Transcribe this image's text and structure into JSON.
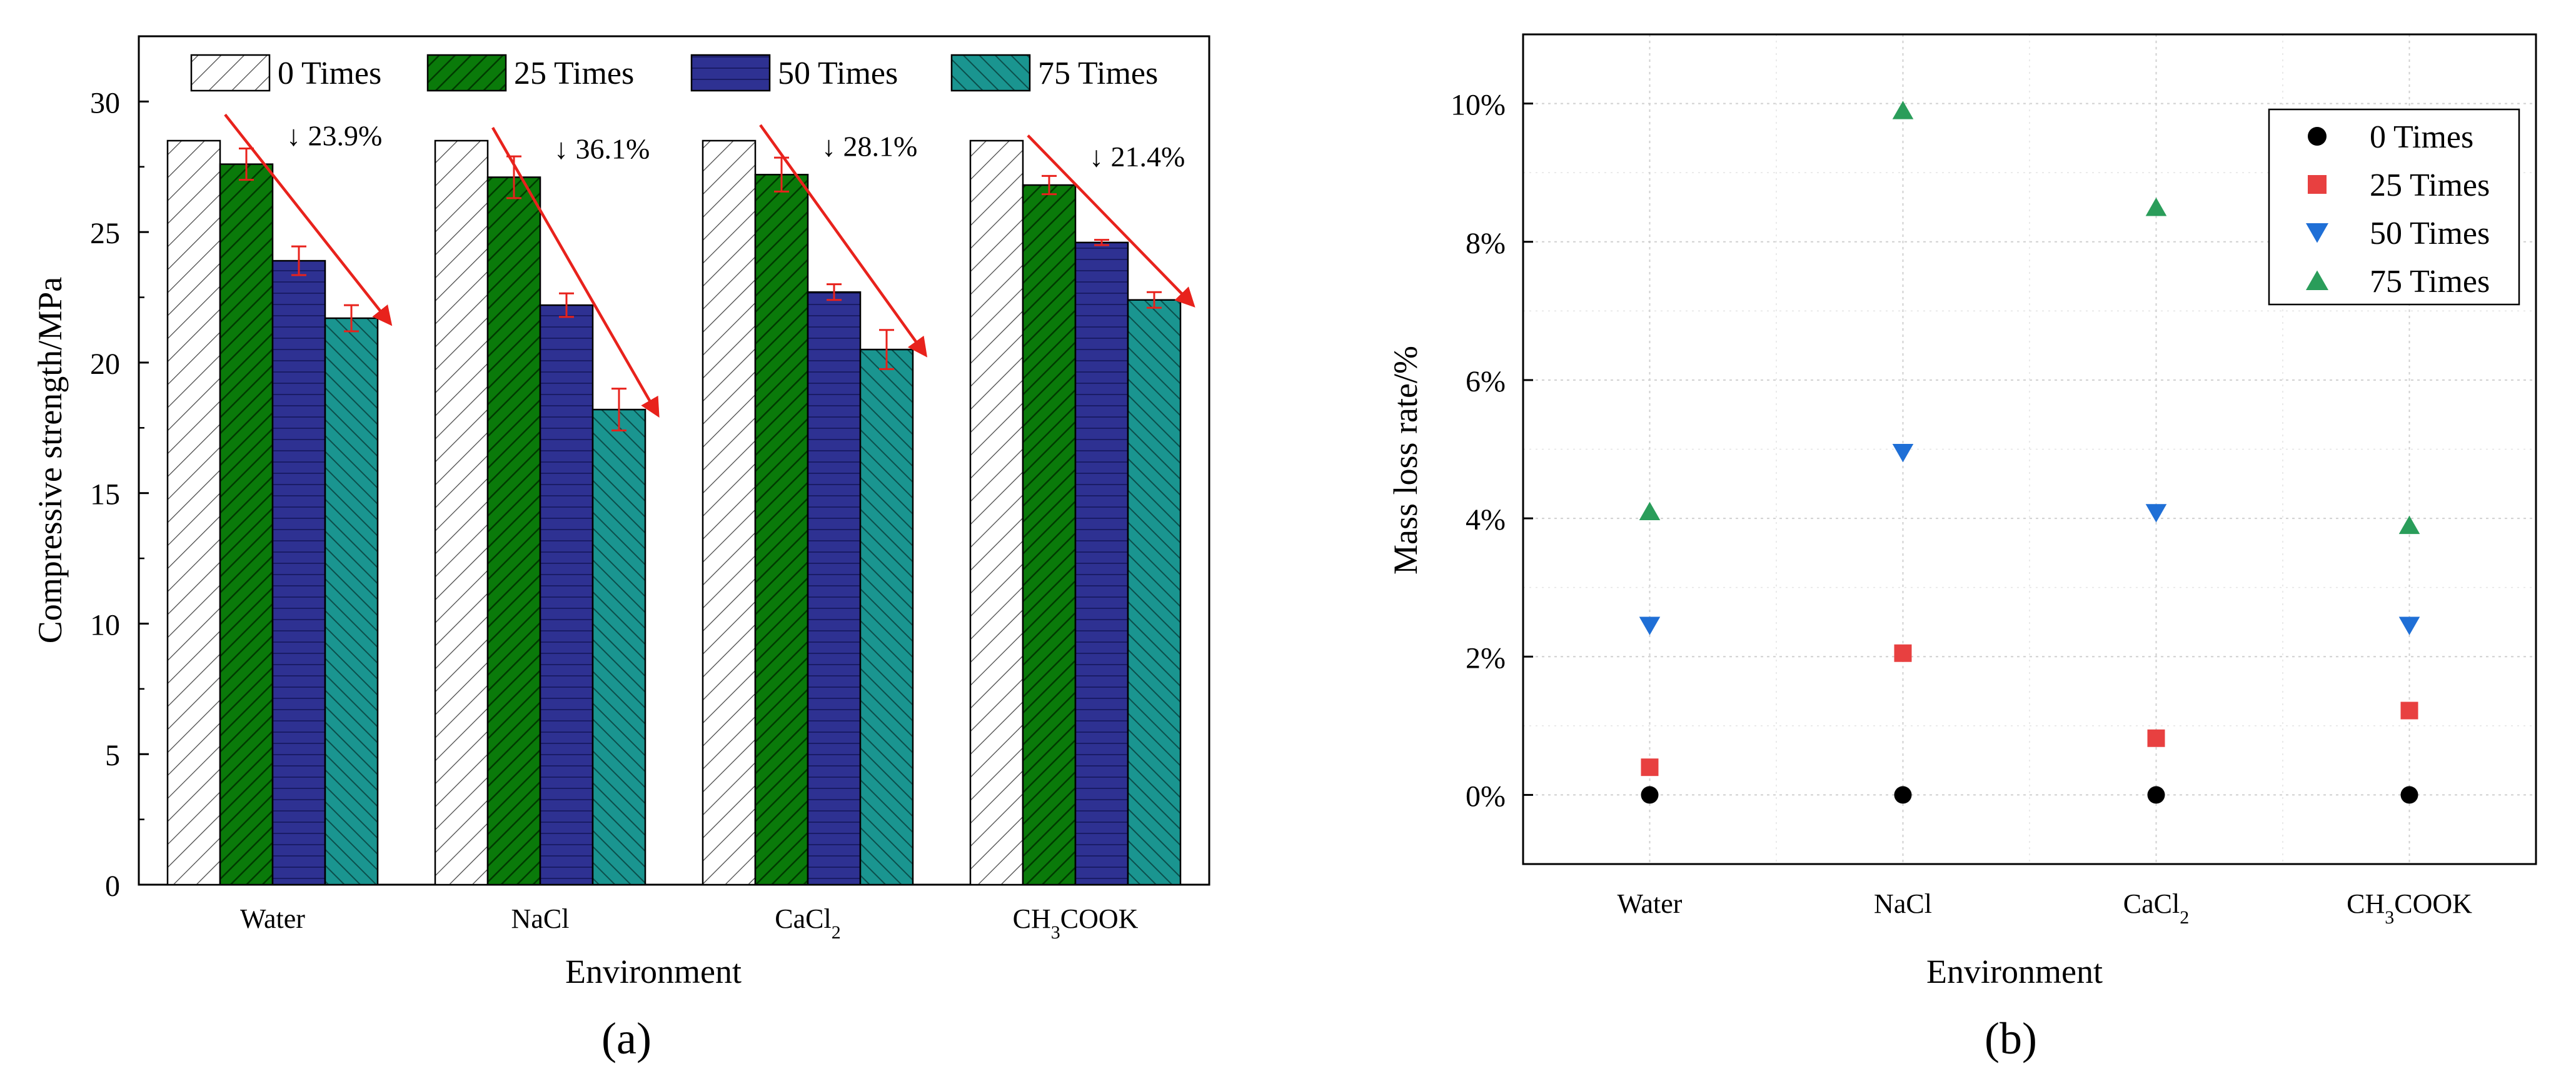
{
  "panels": {
    "a": "(a)",
    "b": "(b)"
  },
  "colors": {
    "s0_fill": "#ffffff",
    "s25_fill": "#0a7a0a",
    "s50_fill": "#2e3192",
    "s75_fill": "#1a9590",
    "arrow": "#e8221c",
    "error": "#e8221c",
    "m0": "#000000",
    "m25": "#e84040",
    "m50": "#1f6fd6",
    "m75": "#2a9d5a"
  },
  "chart_data": [
    {
      "type": "bar",
      "title": "",
      "xlabel": "Environment",
      "ylabel": "Compressive strength/MPa",
      "ylim": [
        0,
        32.5
      ],
      "yticks": [
        "0",
        "5",
        "10",
        "15",
        "20",
        "25",
        "30"
      ],
      "categories": [
        "Water",
        "NaCl",
        "CaCl2",
        "CH3COOK"
      ],
      "legend_position": "top",
      "series": [
        {
          "name": "0  Times",
          "values": [
            28.5,
            28.5,
            28.5,
            28.5
          ],
          "errors": [
            0,
            0,
            0,
            0
          ]
        },
        {
          "name": "25 Times",
          "values": [
            27.6,
            27.1,
            27.2,
            26.8
          ],
          "errors": [
            0.6,
            0.8,
            0.65,
            0.35
          ]
        },
        {
          "name": "50 Times",
          "values": [
            23.9,
            22.2,
            22.7,
            24.6
          ],
          "errors": [
            0.55,
            0.45,
            0.3,
            0.1
          ]
        },
        {
          "name": "75 Times",
          "values": [
            21.7,
            18.2,
            20.5,
            22.4
          ],
          "errors": [
            0.5,
            0.8,
            0.75,
            0.3
          ]
        }
      ],
      "annotations": [
        "↓ 23.9%",
        "↓ 36.1%",
        "↓ 28.1%",
        "↓ 21.4%"
      ]
    },
    {
      "type": "scatter",
      "title": "",
      "xlabel": "Environment",
      "ylabel": "Mass loss rate/%",
      "ylim": [
        -1,
        11
      ],
      "yticks": [
        "0%",
        "2%",
        "4%",
        "6%",
        "8%",
        "10%"
      ],
      "categories": [
        "Water",
        "NaCl",
        "CaCl2",
        "CH3COOK"
      ],
      "grid": true,
      "legend_position": "top-right",
      "series": [
        {
          "name": "0  Times",
          "marker": "circle",
          "values": [
            0,
            0,
            0,
            0
          ]
        },
        {
          "name": "25 Times",
          "marker": "square",
          "values": [
            0.4,
            2.05,
            0.82,
            1.22
          ]
        },
        {
          "name": "50 Times",
          "marker": "triangle-down",
          "values": [
            2.45,
            4.95,
            4.08,
            2.45
          ]
        },
        {
          "name": "75 Times",
          "marker": "triangle-up",
          "values": [
            4.1,
            9.9,
            8.5,
            3.9
          ]
        }
      ]
    }
  ]
}
